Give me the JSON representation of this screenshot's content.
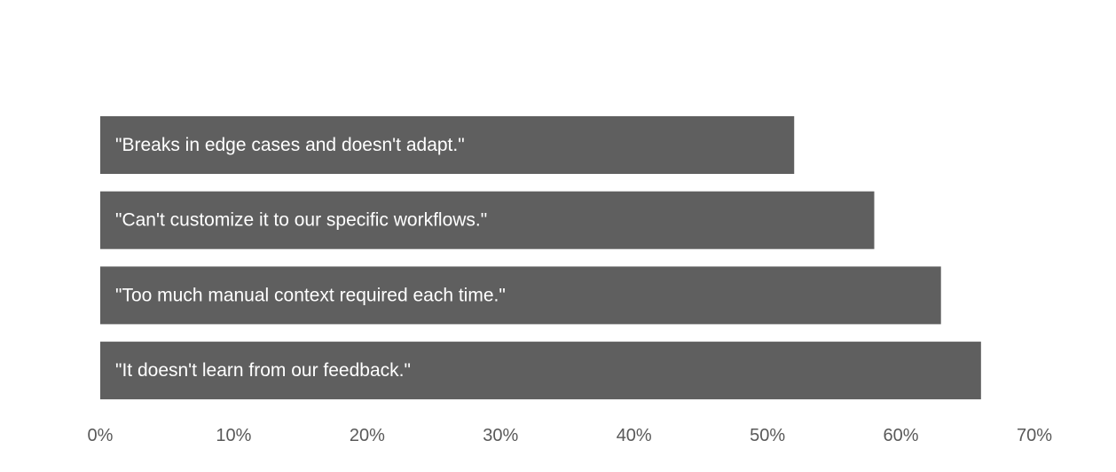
{
  "chart_data": {
    "type": "bar",
    "orientation": "horizontal",
    "categories": [
      "\"Breaks in edge cases and doesn't adapt.\"",
      "\"Can't customize it to our specific workflows.\"",
      "\"Too much manual context required each time.\"",
      "\"It doesn't learn from our feedback.\""
    ],
    "values": [
      0.52,
      0.58,
      0.63,
      0.66
    ],
    "xlim": [
      0,
      0.7
    ],
    "x_ticks": [
      "0%",
      "10%",
      "20%",
      "30%",
      "40%",
      "50%",
      "60%",
      "70%"
    ],
    "bar_color": "#5f5f5f",
    "label_color": "#ffffff",
    "tick_color": "#595959",
    "grid": false,
    "legend": "none",
    "title": "",
    "xlabel": "",
    "ylabel": ""
  }
}
